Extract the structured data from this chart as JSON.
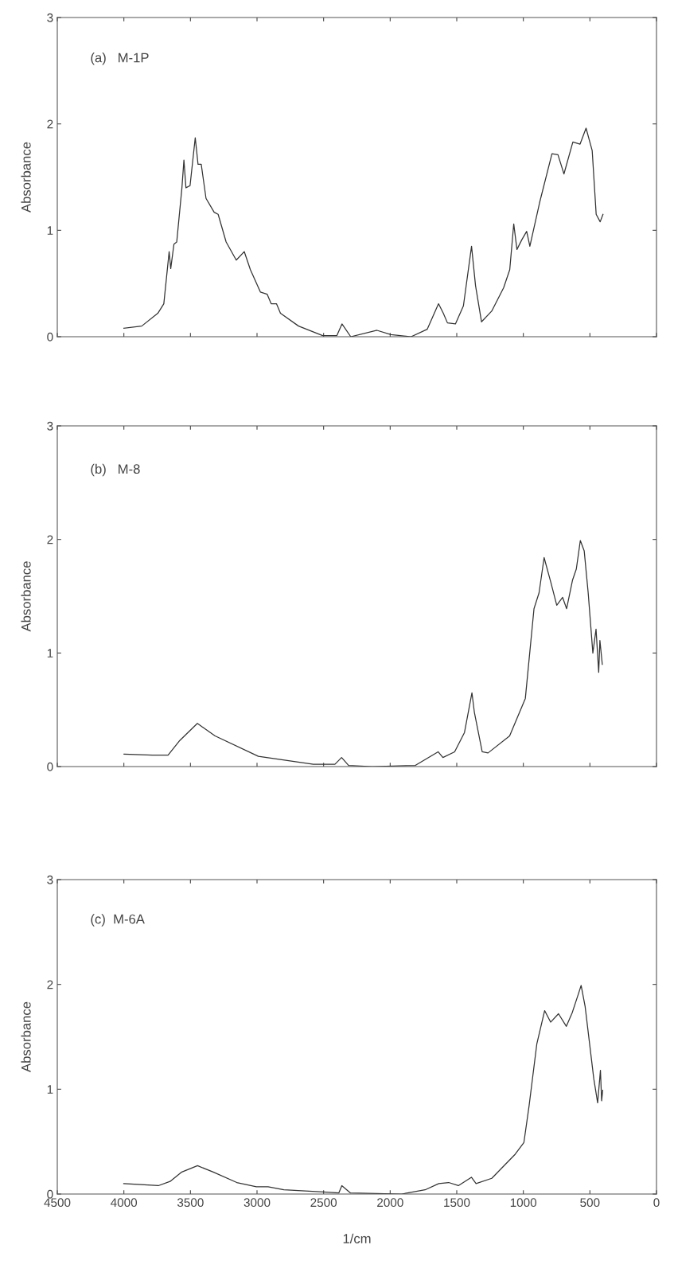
{
  "chart_data": [
    {
      "type": "line",
      "annotations": [
        "(a)   M-1P"
      ],
      "ylabel": "Absorbance",
      "xlim": [
        4500,
        0
      ],
      "ylim": [
        0,
        3
      ],
      "xticks": [
        4500,
        4000,
        3500,
        3000,
        2500,
        2000,
        1500,
        1000,
        500,
        0
      ],
      "yticks": [
        0,
        1,
        2,
        3
      ],
      "tick_labels": "y",
      "grid": false,
      "legend": false,
      "series": [
        {
          "color": "#333333",
          "x": [
            4000,
            3866,
            3745,
            3700,
            3660,
            3648,
            3624,
            3603,
            3564,
            3549,
            3534,
            3503,
            3464,
            3443,
            3419,
            3383,
            3322,
            3292,
            3232,
            3156,
            3096,
            3050,
            2975,
            2924,
            2894,
            2854,
            2824,
            2688,
            2507,
            2401,
            2362,
            2296,
            2099,
            1994,
            1843,
            1722,
            1637,
            1601,
            1570,
            1510,
            1450,
            1389,
            1359,
            1314,
            1238,
            1148,
            1102,
            1072,
            1048,
            1012,
            975,
            951,
            876,
            785,
            740,
            695,
            628,
            574,
            529,
            483,
            453,
            423,
            402
          ],
          "values": [
            0.08,
            0.1,
            0.22,
            0.31,
            0.8,
            0.64,
            0.87,
            0.89,
            1.4,
            1.66,
            1.4,
            1.42,
            1.87,
            1.62,
            1.62,
            1.3,
            1.17,
            1.15,
            0.89,
            0.72,
            0.8,
            0.63,
            0.42,
            0.4,
            0.31,
            0.31,
            0.22,
            0.1,
            0.01,
            0.01,
            0.12,
            0,
            0.06,
            0.02,
            0,
            0.07,
            0.31,
            0.22,
            0.13,
            0.12,
            0.29,
            0.85,
            0.48,
            0.14,
            0.24,
            0.46,
            0.63,
            1.06,
            0.82,
            0.91,
            0.99,
            0.85,
            1.27,
            1.72,
            1.71,
            1.53,
            1.83,
            1.81,
            1.96,
            1.75,
            1.15,
            1.08,
            1.15
          ]
        }
      ]
    },
    {
      "type": "line",
      "annotations": [
        "(b)   M-8"
      ],
      "ylabel": "Absorbance",
      "xlim": [
        4500,
        0
      ],
      "ylim": [
        0,
        3
      ],
      "xticks": [
        4500,
        4000,
        3500,
        3000,
        2500,
        2000,
        1500,
        1000,
        500,
        0
      ],
      "yticks": [
        0,
        1,
        2,
        3
      ],
      "tick_labels": "y",
      "grid": false,
      "legend": false,
      "series": [
        {
          "color": "#333333",
          "x": [
            3999,
            3786,
            3668,
            3580,
            3448,
            3315,
            2990,
            2577,
            2415,
            2365,
            2312,
            2135,
            1811,
            1640,
            1604,
            1516,
            1442,
            1386,
            1368,
            1309,
            1265,
            1103,
            985,
            920,
            882,
            844,
            793,
            749,
            705,
            675,
            631,
            602,
            572,
            543,
            513,
            478,
            454,
            434,
            425,
            407
          ],
          "values": [
            0.11,
            0.1,
            0.1,
            0.23,
            0.38,
            0.27,
            0.09,
            0.02,
            0.02,
            0.08,
            0.01,
            0,
            0.01,
            0.13,
            0.08,
            0.13,
            0.3,
            0.65,
            0.48,
            0.13,
            0.12,
            0.27,
            0.6,
            1.39,
            1.53,
            1.84,
            1.62,
            1.42,
            1.49,
            1.39,
            1.64,
            1.74,
            1.99,
            1.9,
            1.53,
            1.0,
            1.21,
            0.83,
            1.11,
            0.9
          ]
        }
      ]
    },
    {
      "type": "line",
      "annotations": [
        "(c)  M-6A"
      ],
      "ylabel": "Absorbance",
      "xlabel": "1/cm",
      "xlim": [
        4500,
        0
      ],
      "ylim": [
        0,
        3
      ],
      "xticks": [
        4500,
        4000,
        3500,
        3000,
        2500,
        2000,
        1500,
        1000,
        500,
        0
      ],
      "yticks": [
        0,
        1,
        2,
        3
      ],
      "grid": false,
      "legend": false,
      "series": [
        {
          "color": "#333333",
          "x": [
            4001,
            3741,
            3653,
            3565,
            3447,
            3329,
            3152,
            3005,
            2917,
            2799,
            2504,
            2386,
            2363,
            2298,
            1915,
            1738,
            1635,
            1561,
            1488,
            1390,
            1355,
            1237,
            1061,
            996,
            957,
            899,
            840,
            795,
            736,
            677,
            633,
            589,
            566,
            536,
            471,
            442,
            421,
            412,
            404
          ],
          "values": [
            0.1,
            0.08,
            0.12,
            0.21,
            0.27,
            0.21,
            0.11,
            0.07,
            0.07,
            0.04,
            0.02,
            0.01,
            0.08,
            0.01,
            0,
            0.04,
            0.1,
            0.11,
            0.08,
            0.16,
            0.1,
            0.15,
            0.38,
            0.49,
            0.84,
            1.43,
            1.75,
            1.64,
            1.72,
            1.6,
            1.73,
            1.9,
            1.99,
            1.79,
            1.1,
            0.87,
            1.18,
            0.89,
            0.99
          ]
        }
      ]
    }
  ]
}
